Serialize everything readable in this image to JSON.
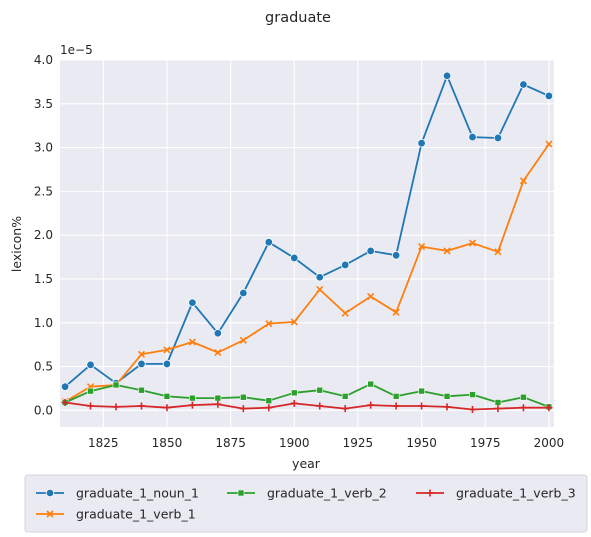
{
  "chart_data": {
    "type": "line",
    "title": "graduate",
    "xlabel": "year",
    "ylabel": "lexicon%",
    "y_offset_text": "1e−5",
    "xlim": [
      1808,
      2002
    ],
    "ylim": [
      -0.19,
      4.0
    ],
    "x_ticks": [
      1825,
      1850,
      1875,
      1900,
      1925,
      1950,
      1975,
      2000
    ],
    "x_tick_labels": [
      "1825",
      "1850",
      "1875",
      "1900",
      "1925",
      "1950",
      "1975",
      "2000"
    ],
    "y_ticks": [
      0.0,
      0.5,
      1.0,
      1.5,
      2.0,
      2.5,
      3.0,
      3.5,
      4.0
    ],
    "y_tick_labels": [
      "0.0",
      "0.5",
      "1.0",
      "1.5",
      "2.0",
      "2.5",
      "3.0",
      "3.5",
      "4.0"
    ],
    "grid": true,
    "legend_position": "bottom",
    "x": [
      1810,
      1820,
      1830,
      1840,
      1850,
      1860,
      1870,
      1880,
      1890,
      1900,
      1910,
      1920,
      1930,
      1940,
      1950,
      1960,
      1970,
      1980,
      1990,
      2000
    ],
    "series": [
      {
        "name": "graduate_1_noun_1",
        "color": "#1f77b4",
        "marker": "circle",
        "values": [
          0.27,
          0.52,
          0.31,
          0.53,
          0.53,
          1.23,
          0.88,
          1.34,
          1.92,
          1.74,
          1.52,
          1.66,
          1.82,
          1.77,
          3.05,
          3.82,
          3.12,
          3.11,
          3.72,
          3.59
        ]
      },
      {
        "name": "graduate_1_verb_1",
        "color": "#ff7f0e",
        "marker": "x",
        "values": [
          0.1,
          0.27,
          0.29,
          0.64,
          0.69,
          0.78,
          0.66,
          0.8,
          0.99,
          1.01,
          1.38,
          1.11,
          1.3,
          1.12,
          1.87,
          1.82,
          1.91,
          1.81,
          2.62,
          3.04
        ]
      },
      {
        "name": "graduate_1_verb_2",
        "color": "#2ca02c",
        "marker": "square",
        "values": [
          0.09,
          0.22,
          0.29,
          0.23,
          0.16,
          0.14,
          0.14,
          0.15,
          0.11,
          0.2,
          0.23,
          0.16,
          0.3,
          0.16,
          0.22,
          0.16,
          0.18,
          0.09,
          0.15,
          0.04
        ]
      },
      {
        "name": "graduate_1_verb_3",
        "color": "#d62728",
        "marker": "plus",
        "values": [
          0.09,
          0.05,
          0.04,
          0.05,
          0.03,
          0.06,
          0.07,
          0.02,
          0.03,
          0.08,
          0.05,
          0.02,
          0.06,
          0.05,
          0.05,
          0.04,
          0.01,
          0.02,
          0.03,
          0.03
        ]
      }
    ]
  }
}
